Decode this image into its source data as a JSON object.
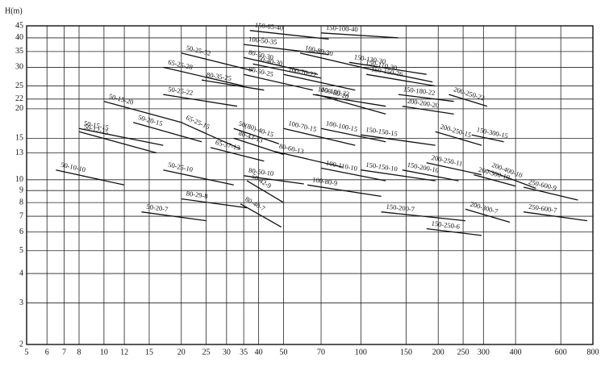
{
  "chart_data": {
    "type": "line",
    "y_label": "H(m)",
    "xscale": "log",
    "yscale": "log",
    "grid": true,
    "color": "#111111",
    "xlim": [
      5,
      800
    ],
    "ylim": [
      2,
      45
    ],
    "xticks": [
      5,
      6,
      7,
      8,
      10,
      12,
      15,
      20,
      25,
      30,
      35,
      40,
      50,
      70,
      100,
      150,
      200,
      250,
      300,
      400,
      600,
      800
    ],
    "yticks": [
      2,
      3,
      4,
      5,
      6,
      7,
      8,
      9,
      10,
      13,
      15,
      20,
      22,
      25,
      30,
      35,
      40,
      45
    ],
    "series": [
      {
        "name": "150-65-40",
        "x": [
          37,
          75
        ],
        "values": [
          43,
          39.5
        ]
      },
      {
        "name": "150-100-40",
        "x": [
          70,
          140
        ],
        "values": [
          42,
          40
        ]
      },
      {
        "name": "100-50-35",
        "x": [
          35,
          75
        ],
        "values": [
          37.5,
          34
        ]
      },
      {
        "name": "50-25-32",
        "x": [
          20,
          38
        ],
        "values": [
          34.5,
          29
        ]
      },
      {
        "name": "65-25-28",
        "x": [
          17,
          35
        ],
        "values": [
          30,
          25
        ]
      },
      {
        "name": "80-50-30",
        "x": [
          35,
          68
        ],
        "values": [
          33,
          28
        ]
      },
      {
        "name": "50-40-30",
        "x": [
          38,
          70
        ],
        "values": [
          31,
          27
        ]
      },
      {
        "name": "100-80-30",
        "x": [
          58,
          115
        ],
        "values": [
          34.5,
          29
        ]
      },
      {
        "name": "150-130-30",
        "x": [
          90,
          180
        ],
        "values": [
          31.5,
          28
        ]
      },
      {
        "name": "150-110-30",
        "x": [
          100,
          190
        ],
        "values": [
          30,
          26
        ]
      },
      {
        "name": "150-150-26",
        "x": [
          105,
          195
        ],
        "values": [
          28,
          25
        ]
      },
      {
        "name": "100-70-22",
        "x": [
          50,
          95
        ],
        "values": [
          28,
          24
        ]
      },
      {
        "name": "80-50-25",
        "x": [
          35,
          65
        ],
        "values": [
          28,
          24
        ]
      },
      {
        "name": "80-35-25",
        "x": [
          24,
          42
        ],
        "values": [
          26.5,
          24
        ]
      },
      {
        "name": "50-25-22",
        "x": [
          17,
          33
        ],
        "values": [
          23,
          20.5
        ]
      },
      {
        "name": "50-15-20",
        "x": [
          10,
          20
        ],
        "values": [
          21.5,
          17.5
        ]
      },
      {
        "name": "100-100-22",
        "x": [
          65,
          125
        ],
        "values": [
          23,
          20.5
        ]
      },
      {
        "name": "100-80-20",
        "x": [
          67,
          125
        ],
        "values": [
          23,
          19
        ]
      },
      {
        "name": "150-180-22",
        "x": [
          140,
          230
        ],
        "values": [
          23,
          21.5
        ]
      },
      {
        "name": "200-250-22",
        "x": [
          220,
          310
        ],
        "values": [
          23,
          20.5
        ]
      },
      {
        "name": "200-200-20",
        "x": [
          145,
          230
        ],
        "values": [
          20.5,
          19
        ]
      },
      {
        "name": "50-15-15",
        "x": [
          8,
          17
        ],
        "values": [
          16.5,
          14
        ]
      },
      {
        "name": "50-12-15",
        "x": [
          8,
          16
        ],
        "values": [
          16,
          13
        ]
      },
      {
        "name": "50-20-15",
        "x": [
          13,
          24
        ],
        "values": [
          17.5,
          14.5
        ]
      },
      {
        "name": "65-25-15",
        "x": [
          20,
          34
        ],
        "values": [
          17.5,
          13.5
        ]
      },
      {
        "name": "50(80)-40-15",
        "x": [
          32,
          48
        ],
        "values": [
          16.5,
          14.2
        ]
      },
      {
        "name": "80-43-13",
        "x": [
          32,
          50
        ],
        "values": [
          15,
          12.8
        ]
      },
      {
        "name": "65-37-13",
        "x": [
          26,
          42
        ],
        "values": [
          13.7,
          12
        ]
      },
      {
        "name": "80-60-13",
        "x": [
          46,
          85
        ],
        "values": [
          13.2,
          11.3
        ]
      },
      {
        "name": "100-70-15",
        "x": [
          50,
          95
        ],
        "values": [
          16.5,
          14
        ]
      },
      {
        "name": "100-100-15",
        "x": [
          70,
          125
        ],
        "values": [
          16.5,
          14.5
        ]
      },
      {
        "name": "150-150-15",
        "x": [
          100,
          195
        ],
        "values": [
          15.5,
          14
        ]
      },
      {
        "name": "200-250-15",
        "x": [
          195,
          295
        ],
        "values": [
          16,
          14
        ]
      },
      {
        "name": "150-300-15",
        "x": [
          270,
          360
        ],
        "values": [
          15.5,
          14.5
        ]
      },
      {
        "name": "50-10-10",
        "x": [
          6.5,
          12
        ],
        "values": [
          11,
          9.5
        ]
      },
      {
        "name": "50-25-10",
        "x": [
          17,
          32
        ],
        "values": [
          11,
          9.5
        ]
      },
      {
        "name": "80-50-10",
        "x": [
          35,
          60
        ],
        "values": [
          10.4,
          9.6
        ]
      },
      {
        "name": "50-42-9",
        "x": [
          36,
          50
        ],
        "values": [
          9.9,
          8
        ]
      },
      {
        "name": "100-110-10",
        "x": [
          70,
          125
        ],
        "values": [
          11.2,
          9.9
        ]
      },
      {
        "name": "150-150-10",
        "x": [
          100,
          195
        ],
        "values": [
          11,
          9.9
        ]
      },
      {
        "name": "150-200-10",
        "x": [
          145,
          240
        ],
        "values": [
          11,
          9.9
        ]
      },
      {
        "name": "200-250-11",
        "x": [
          180,
          295
        ],
        "values": [
          11.8,
          10.5
        ]
      },
      {
        "name": "200-300-10",
        "x": [
          275,
          400
        ],
        "values": [
          10.5,
          9.4
        ]
      },
      {
        "name": "200-400-10",
        "x": [
          310,
          480
        ],
        "values": [
          11,
          9.2
        ]
      },
      {
        "name": "250-600-9",
        "x": [
          430,
          700
        ],
        "values": [
          9.3,
          8.2
        ]
      },
      {
        "name": "100-80-9",
        "x": [
          62,
          120
        ],
        "values": [
          9.5,
          8.5
        ]
      },
      {
        "name": "80-29-8",
        "x": [
          20,
          36
        ],
        "values": [
          8.3,
          7.6
        ]
      },
      {
        "name": "80-40-7",
        "x": [
          34,
          49
        ],
        "values": [
          7.9,
          6.3
        ]
      },
      {
        "name": "50-20-7",
        "x": [
          14,
          25
        ],
        "values": [
          7.3,
          6.7
        ]
      },
      {
        "name": "150-200-7",
        "x": [
          120,
          255
        ],
        "values": [
          7.3,
          6.7
        ]
      },
      {
        "name": "200-300-7",
        "x": [
          255,
          380
        ],
        "values": [
          7.5,
          6.6
        ]
      },
      {
        "name": "250-600-7",
        "x": [
          430,
          760
        ],
        "values": [
          7.3,
          6.7
        ]
      },
      {
        "name": "150-250-6",
        "x": [
          180,
          295
        ],
        "values": [
          6.2,
          5.8
        ]
      }
    ]
  }
}
